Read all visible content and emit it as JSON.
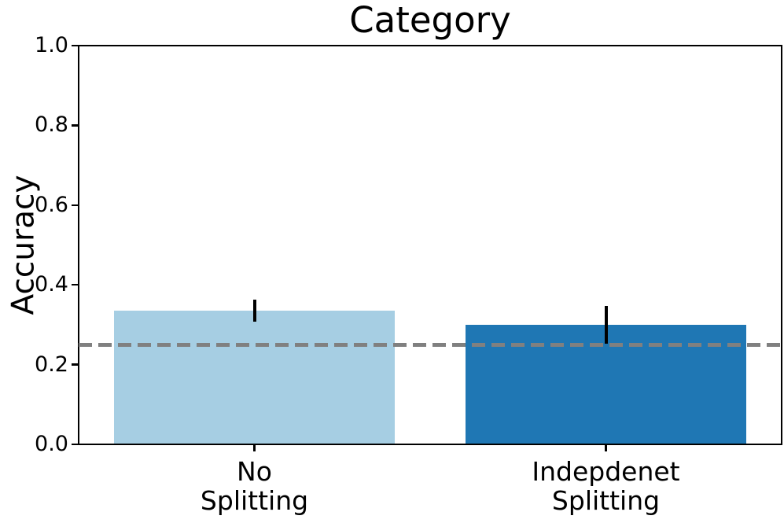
{
  "chart_data": {
    "type": "bar",
    "title": "Category",
    "ylabel": "Accuracy",
    "xlabel": "",
    "categories": [
      "No\nSplitting",
      "Indepdenet\nSplitting"
    ],
    "values": [
      0.335,
      0.3
    ],
    "errors": [
      0.027,
      0.048
    ],
    "bar_colors": [
      "#a6cee3",
      "#1f77b4"
    ],
    "error_bar_color": "#000000",
    "ylim": [
      0.0,
      1.0
    ],
    "yticks": [
      "0.0",
      "0.2",
      "0.4",
      "0.6",
      "0.8",
      "1.0"
    ],
    "reference_line": {
      "value": 0.25,
      "style": "dashed",
      "color": "#808080"
    },
    "axis_color": "#000000",
    "text_color": "#000000",
    "background": "#ffffff",
    "grid": false,
    "legend": false
  }
}
